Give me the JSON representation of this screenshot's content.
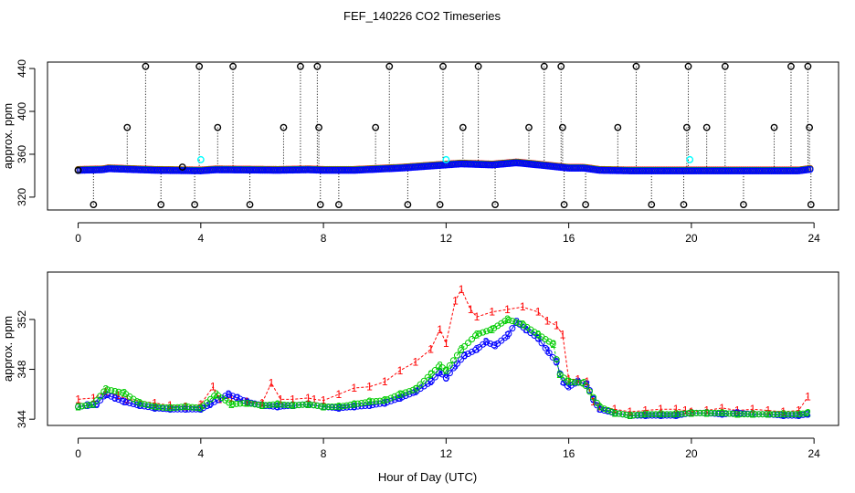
{
  "title": "FEF_140226  CO2 Timeseries",
  "colors": {
    "series1": "#ff0000",
    "series2": "#00cc00",
    "series3": "#0000ff",
    "flag_black": "#000000",
    "flag_cyan": "#00ffff",
    "axis": "#000000",
    "dotted_line": "#000000"
  },
  "chart_data": [
    {
      "type": "scatter",
      "panel": "top",
      "ylabel": "approx. ppm",
      "xlabel": "",
      "xlim": [
        -1,
        24.8
      ],
      "ylim": [
        308,
        446
      ],
      "x_ticks": [
        "0",
        "4",
        "8",
        "12",
        "16",
        "20",
        "24"
      ],
      "y_ticks": [
        "320",
        "360",
        "400",
        "440"
      ],
      "x_tick_values": [
        0,
        4,
        8,
        12,
        16,
        20,
        24
      ],
      "y_tick_values": [
        320,
        360,
        400,
        440
      ],
      "grid": false,
      "baseline_profile": {
        "x": [
          0,
          0.8,
          1.0,
          1.5,
          2.5,
          4.0,
          4.5,
          6.5,
          7.5,
          8.0,
          9.0,
          10.5,
          11.5,
          12.5,
          13.5,
          14.3,
          15.0,
          16.0,
          16.5,
          17.0,
          18.0,
          19.8,
          20.0,
          21.0,
          23.5,
          23.9
        ],
        "y": [
          345,
          345.5,
          346.5,
          346,
          345,
          344.5,
          345.5,
          345,
          345.5,
          345,
          345,
          347,
          349,
          351,
          350,
          352,
          350,
          347,
          347,
          345,
          344.5,
          344.5,
          344.5,
          344.5,
          344.5,
          346
        ]
      },
      "flagged_black": {
        "x": [
          0.0,
          0.5,
          1.6,
          2.2,
          2.7,
          3.4,
          3.8,
          3.95,
          4.55,
          5.05,
          5.6,
          6.7,
          7.25,
          7.8,
          7.85,
          7.9,
          8.5,
          9.7,
          10.15,
          10.75,
          11.8,
          11.9,
          12.55,
          13.05,
          13.6,
          14.7,
          15.2,
          15.75,
          15.8,
          15.85,
          16.55,
          17.6,
          18.2,
          18.7,
          19.75,
          19.85,
          19.9,
          20.5,
          21.1,
          21.7,
          22.7,
          23.25,
          23.8,
          23.85,
          23.9
        ],
        "y": [
          345,
          313,
          385,
          442,
          313,
          348,
          313,
          442,
          385,
          442,
          313,
          385,
          442,
          442,
          385,
          313,
          313,
          385,
          442,
          313,
          313,
          442,
          385,
          442,
          313,
          385,
          442,
          442,
          385,
          313,
          313,
          385,
          442,
          313,
          313,
          385,
          442,
          385,
          442,
          313,
          385,
          442,
          442,
          385,
          313
        ]
      },
      "flagged_cyan": {
        "x": [
          4.0,
          12.0,
          19.95
        ],
        "y": [
          355,
          355,
          355
        ]
      }
    },
    {
      "type": "scatter",
      "panel": "bottom",
      "ylabel": "approx. ppm",
      "xlabel": "Hour of Day (UTC)",
      "xlim": [
        -1,
        24.8
      ],
      "ylim": [
        343.5,
        355.8
      ],
      "x_ticks": [
        "0",
        "4",
        "8",
        "12",
        "16",
        "20",
        "24"
      ],
      "y_ticks": [
        "344",
        "348",
        "352"
      ],
      "x_tick_values": [
        0,
        4,
        8,
        12,
        16,
        20,
        24
      ],
      "y_tick_values": [
        344,
        348,
        352
      ],
      "grid": false,
      "marker_labels": [
        "1",
        "2",
        "3"
      ],
      "series": [
        {
          "name": "1",
          "color": "#ff0000",
          "x": [
            0,
            0.5,
            0.9,
            1.3,
            1.6,
            2.5,
            3.0,
            3.5,
            4.0,
            4.4,
            4.6,
            5.0,
            5.5,
            6.0,
            6.3,
            6.6,
            7.0,
            7.5,
            7.7,
            8.0,
            8.5,
            9.0,
            9.5,
            10.0,
            10.5,
            11.0,
            11.5,
            11.8,
            12.0,
            12.3,
            12.5,
            12.8,
            13.0,
            13.5,
            14.0,
            14.5,
            15.0,
            15.3,
            15.6,
            15.8,
            16.0,
            16.3,
            16.6,
            16.8,
            17.0,
            17.5,
            18.0,
            18.5,
            19.0,
            19.5,
            19.8,
            20.0,
            20.5,
            21.0,
            21.5,
            22.0,
            22.5,
            23.0,
            23.5,
            23.8
          ],
          "y": [
            345.6,
            345.7,
            346.2,
            345.9,
            345.6,
            345.3,
            345.1,
            345.0,
            345.2,
            346.6,
            345.6,
            345.7,
            345.4,
            345.3,
            346.9,
            345.6,
            345.6,
            345.7,
            345.6,
            345.5,
            346.0,
            346.5,
            346.6,
            347.0,
            347.9,
            348.6,
            349.6,
            351.2,
            350.1,
            353.5,
            354.4,
            352.8,
            352.2,
            352.6,
            352.8,
            353.0,
            352.6,
            351.9,
            351.5,
            350.8,
            347.2,
            347.2,
            347.0,
            345.4,
            345.0,
            344.8,
            344.6,
            344.7,
            344.8,
            344.8,
            344.7,
            344.6,
            344.7,
            344.9,
            344.7,
            344.8,
            344.7,
            344.6,
            344.7,
            345.8
          ]
        },
        {
          "name": "2",
          "color": "#00cc00",
          "x": [
            0,
            0.5,
            0.9,
            1.5,
            2.0,
            2.5,
            3.0,
            3.5,
            4.0,
            4.5,
            5.0,
            5.5,
            6.0,
            6.5,
            7.0,
            7.5,
            8.0,
            8.5,
            9.0,
            9.5,
            10.0,
            10.5,
            11.0,
            11.5,
            11.8,
            12.0,
            12.5,
            13.0,
            13.5,
            14.0,
            14.5,
            15.0,
            15.5,
            15.7,
            16.0,
            16.5,
            17.0,
            17.5,
            18.0,
            18.5,
            19.0,
            19.5,
            20.0,
            20.5,
            21.0,
            21.5,
            22.0,
            22.5,
            23.0,
            23.5,
            23.8
          ],
          "y": [
            345.0,
            345.2,
            346.4,
            346.1,
            345.3,
            345.0,
            344.9,
            345.0,
            344.9,
            346.0,
            345.2,
            345.3,
            345.1,
            345.2,
            345.1,
            345.2,
            345.0,
            345.0,
            345.2,
            345.4,
            345.5,
            346.0,
            346.4,
            347.6,
            348.3,
            347.9,
            349.6,
            350.8,
            351.2,
            352.0,
            351.6,
            350.8,
            350.0,
            347.6,
            347.0,
            346.9,
            345.0,
            344.5,
            344.3,
            344.4,
            344.4,
            344.4,
            344.5,
            344.5,
            344.5,
            344.4,
            344.4,
            344.4,
            344.4,
            344.4,
            344.5
          ]
        },
        {
          "name": "3",
          "color": "#0000ff",
          "x": [
            0,
            0.3,
            0.6,
            0.9,
            1.2,
            1.5,
            2.0,
            2.5,
            3.0,
            3.5,
            4.0,
            4.3,
            4.6,
            4.9,
            5.2,
            5.5,
            6.0,
            6.5,
            7.0,
            7.5,
            8.0,
            8.5,
            9.0,
            9.5,
            10.0,
            10.5,
            11.0,
            11.5,
            11.8,
            12.0,
            12.3,
            12.6,
            13.0,
            13.3,
            13.6,
            14.0,
            14.3,
            14.6,
            15.0,
            15.3,
            15.6,
            15.8,
            16.0,
            16.3,
            16.6,
            16.8,
            17.0,
            17.5,
            18.0,
            18.5,
            19.0,
            19.5,
            20.0,
            20.5,
            21.0,
            21.5,
            22.0,
            22.5,
            23.0,
            23.5,
            23.8
          ],
          "y": [
            345.0,
            345.1,
            345.2,
            346.0,
            345.7,
            345.4,
            345.1,
            344.9,
            344.8,
            344.8,
            344.8,
            345.2,
            345.6,
            346.0,
            345.7,
            345.4,
            345.1,
            345.0,
            345.1,
            345.2,
            345.0,
            344.9,
            345.0,
            345.1,
            345.3,
            345.7,
            346.2,
            347.0,
            347.8,
            347.3,
            348.3,
            349.1,
            349.6,
            350.2,
            349.9,
            350.7,
            351.8,
            351.2,
            350.5,
            349.5,
            348.6,
            347.0,
            346.6,
            347.0,
            346.8,
            345.6,
            344.8,
            344.5,
            344.3,
            344.3,
            344.3,
            344.3,
            344.5,
            344.5,
            344.4,
            344.5,
            344.4,
            344.4,
            344.3,
            344.3,
            344.4
          ]
        }
      ]
    }
  ]
}
